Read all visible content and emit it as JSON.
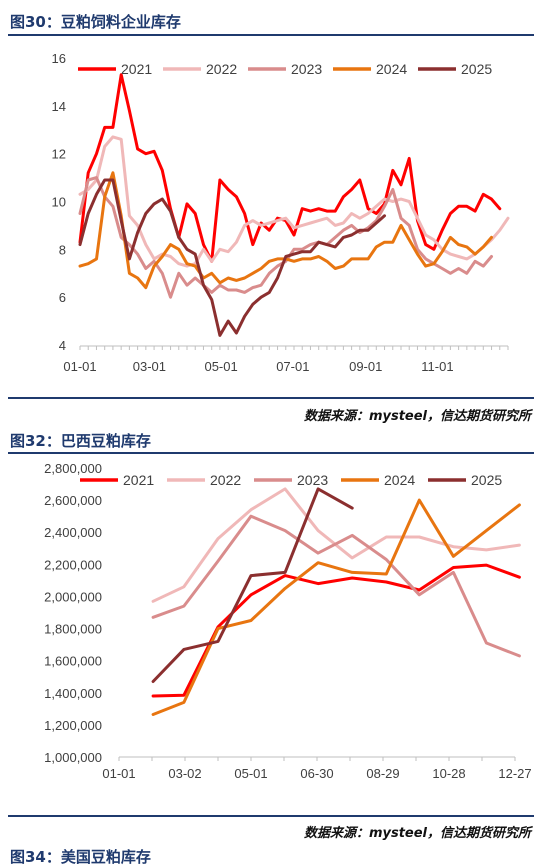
{
  "figures": [
    {
      "title": "图30：豆粕饲料企业库存",
      "source": "数据来源：mysteel，信达期货研究所"
    },
    {
      "title": "图32：巴西豆粕库存",
      "source": "数据来源：mysteel，信达期货研究所"
    }
  ],
  "next_title": "图34：美国豆粕库存",
  "chart_data": [
    {
      "type": "line",
      "title": "图30：豆粕饲料企业库存",
      "xlabel": "",
      "ylabel": "",
      "x_ticks": [
        "01-01",
        "03-01",
        "05-01",
        "07-01",
        "09-01",
        "11-01"
      ],
      "x_range_day_of_year": [
        1,
        365
      ],
      "y_ticks": [
        4,
        6,
        8,
        10,
        12,
        14,
        16
      ],
      "ylim": [
        4,
        16
      ],
      "grid": false,
      "legend": "top",
      "series": [
        {
          "name": "2021",
          "color": "#ff0000",
          "x": [
            1,
            8,
            15,
            22,
            29,
            36,
            43,
            50,
            57,
            64,
            71,
            78,
            85,
            92,
            99,
            106,
            113,
            120,
            127,
            134,
            141,
            148,
            155,
            162,
            169,
            176,
            183,
            190,
            197,
            204,
            211,
            218,
            225,
            232,
            239,
            246,
            253,
            260,
            267,
            274,
            281,
            288,
            295,
            302,
            309,
            316,
            323,
            330,
            337,
            344,
            351,
            358
          ],
          "y": [
            8.3,
            11.2,
            12.0,
            13.1,
            13.1,
            15.3,
            13.8,
            12.2,
            12.0,
            12.1,
            11.3,
            9.7,
            8.5,
            9.9,
            9.5,
            8.2,
            7.5,
            10.9,
            10.5,
            10.2,
            9.5,
            8.2,
            9.1,
            8.8,
            9.3,
            9.2,
            8.6,
            9.7,
            9.6,
            9.7,
            9.6,
            9.6,
            10.2,
            10.5,
            10.9,
            9.7,
            9.5,
            9.9,
            11.3,
            10.7,
            11.8,
            9.2,
            8.2,
            8.0,
            8.8,
            9.5,
            9.8,
            9.8,
            9.6,
            10.3,
            10.1,
            9.7
          ]
        },
        {
          "name": "2022",
          "color": "#f0b8b8",
          "x": [
            1,
            8,
            15,
            22,
            29,
            36,
            43,
            50,
            57,
            64,
            71,
            78,
            85,
            92,
            99,
            106,
            113,
            120,
            127,
            134,
            141,
            148,
            155,
            162,
            169,
            176,
            183,
            190,
            197,
            204,
            211,
            218,
            225,
            232,
            239,
            246,
            253,
            260,
            267,
            274,
            281,
            288,
            295,
            302,
            309,
            316,
            323,
            330,
            337,
            344,
            351,
            358,
            365
          ],
          "y": [
            10.3,
            10.5,
            10.9,
            12.3,
            12.7,
            12.6,
            9.4,
            9.0,
            8.2,
            7.6,
            7.8,
            7.7,
            7.4,
            7.3,
            7.4,
            8.0,
            7.5,
            8.0,
            7.9,
            8.3,
            9.0,
            9.2,
            9.0,
            9.1,
            9.2,
            9.3,
            8.9,
            9.0,
            9.1,
            9.2,
            9.3,
            9.0,
            9.1,
            9.5,
            9.3,
            9.5,
            9.8,
            10.1,
            10.0,
            10.1,
            10.0,
            9.3,
            8.6,
            8.4,
            8.0,
            7.8,
            7.7,
            7.6,
            7.8,
            8.1,
            8.4,
            8.8,
            9.3
          ]
        },
        {
          "name": "2023",
          "color": "#d98c8c",
          "x": [
            1,
            8,
            15,
            22,
            29,
            36,
            43,
            50,
            57,
            64,
            71,
            78,
            85,
            92,
            99,
            106,
            113,
            120,
            127,
            134,
            141,
            148,
            155,
            162,
            169,
            176,
            183,
            190,
            197,
            204,
            211,
            218,
            225,
            232,
            239,
            246,
            253,
            260,
            267,
            274,
            281,
            288,
            295,
            302,
            309,
            316,
            323,
            330,
            337,
            344,
            351
          ],
          "y": [
            9.5,
            10.9,
            11.0,
            10.2,
            9.8,
            8.5,
            8.2,
            7.8,
            7.2,
            7.5,
            7.0,
            6.0,
            7.0,
            6.5,
            6.8,
            6.5,
            6.2,
            6.5,
            6.3,
            6.3,
            6.2,
            6.4,
            6.5,
            7.0,
            7.3,
            7.5,
            8.0,
            8.0,
            8.2,
            8.3,
            8.2,
            8.5,
            8.8,
            9.0,
            8.7,
            8.9,
            9.2,
            9.8,
            10.5,
            9.3,
            9.0,
            8.0,
            7.6,
            7.4,
            7.2,
            7.0,
            7.2,
            7.0,
            7.5,
            7.3,
            7.7
          ]
        },
        {
          "name": "2024",
          "color": "#e87510",
          "x": [
            1,
            8,
            15,
            22,
            29,
            36,
            43,
            50,
            57,
            64,
            71,
            78,
            85,
            92,
            99,
            106,
            113,
            120,
            127,
            134,
            141,
            148,
            155,
            162,
            169,
            176,
            183,
            190,
            197,
            204,
            211,
            218,
            225,
            232,
            239,
            246,
            253,
            260,
            267,
            274,
            281,
            288,
            295,
            302,
            309,
            316,
            323,
            330,
            337,
            344,
            351
          ],
          "y": [
            7.3,
            7.4,
            7.6,
            10.2,
            11.2,
            9.4,
            7.0,
            6.8,
            6.4,
            7.3,
            7.7,
            8.2,
            8.0,
            7.4,
            7.3,
            6.8,
            7.0,
            6.6,
            6.8,
            6.7,
            6.8,
            7.0,
            7.2,
            7.5,
            7.6,
            7.6,
            7.5,
            7.6,
            7.6,
            7.7,
            7.5,
            7.2,
            7.3,
            7.6,
            7.6,
            7.6,
            8.1,
            8.3,
            8.3,
            9.0,
            8.4,
            7.8,
            7.3,
            7.4,
            7.9,
            8.5,
            8.2,
            8.1,
            7.8,
            8.1,
            8.5
          ]
        },
        {
          "name": "2025",
          "color": "#8b2f2f",
          "x": [
            1,
            8,
            15,
            22,
            29,
            36,
            43,
            50,
            57,
            64,
            71,
            78,
            85,
            92,
            99,
            106,
            113,
            120,
            127,
            134,
            141,
            148,
            155,
            162,
            169,
            176,
            183,
            190,
            197,
            204,
            211,
            218,
            225,
            232,
            239,
            246,
            253,
            260
          ],
          "y": [
            8.2,
            9.5,
            10.3,
            10.9,
            10.9,
            9.2,
            7.6,
            8.7,
            9.5,
            9.9,
            10.1,
            9.6,
            8.5,
            8.0,
            7.8,
            6.5,
            5.9,
            4.4,
            5.0,
            4.5,
            5.2,
            5.7,
            6.0,
            6.2,
            6.8,
            7.7,
            7.8,
            7.9,
            7.9,
            8.3,
            8.2,
            8.1,
            8.5,
            8.6,
            8.8,
            8.8,
            9.1,
            9.4
          ]
        }
      ]
    },
    {
      "type": "line",
      "title": "图32：巴西豆粕库存",
      "xlabel": "",
      "ylabel": "",
      "x_ticks": [
        "01-01",
        "03-02",
        "05-01",
        "06-30",
        "08-29",
        "10-28",
        "12-27"
      ],
      "x_range_day_of_year": [
        1,
        361
      ],
      "y_ticks": [
        1000000,
        1200000,
        1400000,
        1600000,
        1800000,
        2000000,
        2200000,
        2400000,
        2600000,
        2800000
      ],
      "y_tick_labels": [
        "1,000,000",
        "1,200,000",
        "1,400,000",
        "1,600,000",
        "1,800,000",
        "2,000,000",
        "2,200,000",
        "2,400,000",
        "2,600,000",
        "2,800,000"
      ],
      "ylim": [
        1000000,
        2800000
      ],
      "grid": false,
      "legend": "top",
      "series": [
        {
          "name": "2021",
          "color": "#ff0000",
          "x": [
            32,
            60,
            91,
            121,
            152,
            182,
            213,
            244,
            274,
            305,
            335,
            365
          ],
          "y": [
            1380000,
            1385000,
            1810000,
            2010000,
            2130000,
            2080000,
            2115000,
            2090000,
            2040000,
            2180000,
            2195000,
            2120000
          ]
        },
        {
          "name": "2022",
          "color": "#f0b8b8",
          "x": [
            32,
            60,
            91,
            121,
            152,
            182,
            213,
            244,
            274,
            305,
            335,
            365
          ],
          "y": [
            1970000,
            2060000,
            2360000,
            2540000,
            2670000,
            2410000,
            2240000,
            2370000,
            2370000,
            2310000,
            2290000,
            2320000
          ]
        },
        {
          "name": "2023",
          "color": "#d98c8c",
          "x": [
            32,
            60,
            91,
            121,
            152,
            182,
            213,
            244,
            274,
            305,
            335,
            365
          ],
          "y": [
            1870000,
            1940000,
            2220000,
            2500000,
            2410000,
            2270000,
            2380000,
            2230000,
            2010000,
            2150000,
            1710000,
            1630000
          ]
        },
        {
          "name": "2024",
          "color": "#e87510",
          "x": [
            32,
            60,
            91,
            121,
            152,
            182,
            213,
            244,
            274,
            305,
            335,
            365
          ],
          "y": [
            1265000,
            1340000,
            1800000,
            1850000,
            2050000,
            2210000,
            2150000,
            2140000,
            2600000,
            2250000,
            2410000,
            2570000
          ]
        },
        {
          "name": "2025",
          "color": "#8b2f2f",
          "x": [
            32,
            60,
            91,
            121,
            152,
            182,
            213
          ],
          "y": [
            1470000,
            1670000,
            1720000,
            2130000,
            2150000,
            2670000,
            2550000
          ]
        }
      ]
    }
  ]
}
